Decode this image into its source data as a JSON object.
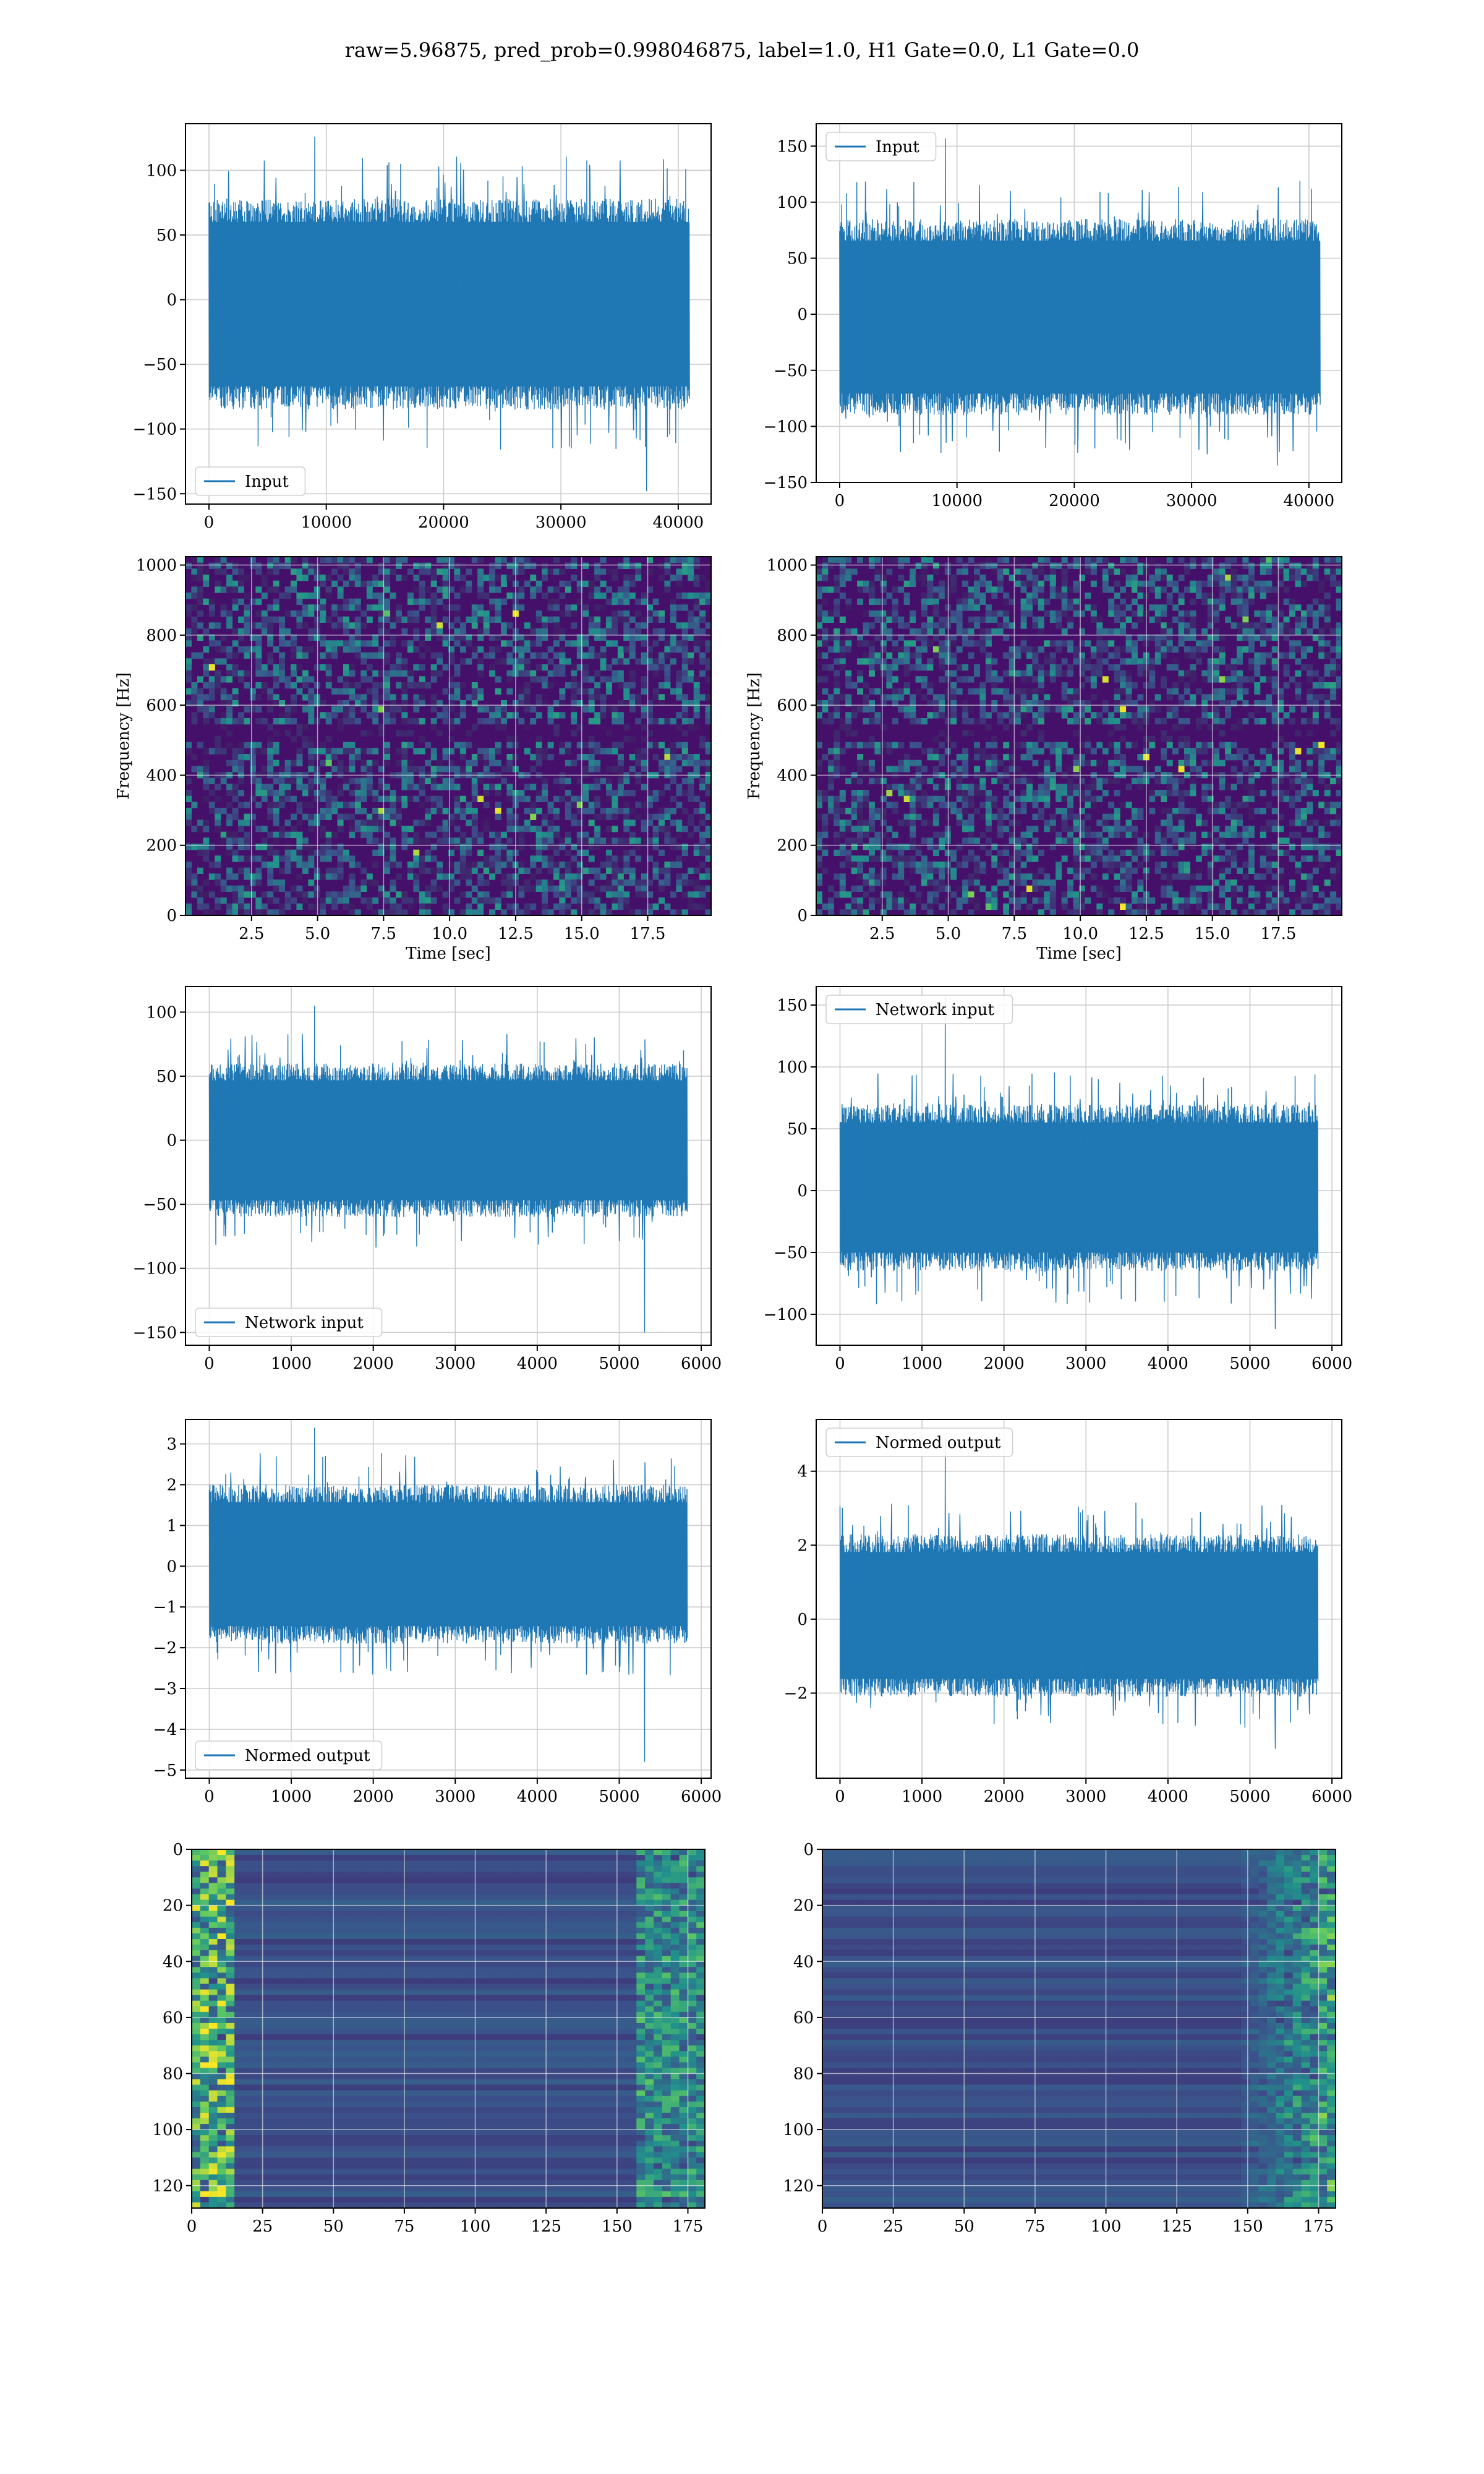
{
  "figure": {
    "title": "raw=5.96875, pred_prob=0.998046875, label=1.0, H1 Gate=0.0, L1 Gate=0.0"
  },
  "colors": {
    "series": "#1f77b4",
    "grid": "#cccccc",
    "viridis_low": "#440154",
    "viridis_mid": "#21918c",
    "viridis_high": "#fde725"
  },
  "chart_data": [
    {
      "id": "r1c1",
      "type": "line",
      "legend": "Input",
      "legend_loc": "lower-left",
      "xlim": [
        -2000,
        42800
      ],
      "ylim": [
        -158,
        136
      ],
      "xticks": [
        0,
        10000,
        20000,
        30000,
        40000
      ],
      "yticks": [
        -150,
        -100,
        -50,
        0,
        50,
        100
      ],
      "x_range": [
        0,
        40960
      ],
      "band": [
        -85,
        78
      ],
      "peak_max": 126,
      "peak_min": -148,
      "grid": true
    },
    {
      "id": "r1c2",
      "type": "line",
      "legend": "Input",
      "legend_loc": "upper-left",
      "xlim": [
        -2000,
        42800
      ],
      "ylim": [
        -150,
        170
      ],
      "xticks": [
        0,
        10000,
        20000,
        30000,
        40000
      ],
      "yticks": [
        -150,
        -100,
        -50,
        0,
        50,
        100,
        150
      ],
      "x_range": [
        0,
        40960
      ],
      "band": [
        -90,
        85
      ],
      "peak_max": 157,
      "peak_min": -135,
      "grid": true
    },
    {
      "id": "r2c1",
      "type": "heatmap",
      "kind": "spectrogram",
      "xlabel": "Time [sec]",
      "ylabel": "Frequency [Hz]",
      "xlim": [
        0,
        19.9
      ],
      "ylim": [
        0,
        1024
      ],
      "xticks": [
        2.5,
        5.0,
        7.5,
        10.0,
        12.5,
        15.0,
        17.5
      ],
      "yticks": [
        0,
        200,
        400,
        600,
        800,
        1000
      ],
      "grid": true
    },
    {
      "id": "r2c2",
      "type": "heatmap",
      "kind": "spectrogram",
      "xlabel": "Time [sec]",
      "ylabel": "Frequency [Hz]",
      "xlim": [
        0,
        19.9
      ],
      "ylim": [
        0,
        1024
      ],
      "xticks": [
        2.5,
        5.0,
        7.5,
        10.0,
        12.5,
        15.0,
        17.5
      ],
      "yticks": [
        0,
        200,
        400,
        600,
        800,
        1000
      ],
      "grid": true
    },
    {
      "id": "r3c1",
      "type": "line",
      "legend": "Network input",
      "legend_loc": "lower-left",
      "xlim": [
        -290,
        6120
      ],
      "ylim": [
        -160,
        120
      ],
      "xticks": [
        0,
        1000,
        2000,
        3000,
        4000,
        5000,
        6000
      ],
      "yticks": [
        -150,
        -100,
        -50,
        0,
        50,
        100
      ],
      "x_range": [
        0,
        5830
      ],
      "band": [
        -60,
        60
      ],
      "peak_max": 105,
      "peak_min": -150,
      "grid": true
    },
    {
      "id": "r3c2",
      "type": "line",
      "legend": "Network input",
      "legend_loc": "upper-left",
      "xlim": [
        -290,
        6120
      ],
      "ylim": [
        -125,
        165
      ],
      "xticks": [
        0,
        1000,
        2000,
        3000,
        4000,
        5000,
        6000
      ],
      "yticks": [
        -100,
        -50,
        0,
        50,
        100,
        150
      ],
      "x_range": [
        0,
        5830
      ],
      "band": [
        -65,
        70
      ],
      "peak_max": 157,
      "peak_min": -112,
      "grid": true
    },
    {
      "id": "r4c1",
      "type": "line",
      "legend": "Normed output",
      "legend_loc": "lower-left",
      "xlim": [
        -290,
        6120
      ],
      "ylim": [
        -5.2,
        3.6
      ],
      "xticks": [
        0,
        1000,
        2000,
        3000,
        4000,
        5000,
        6000
      ],
      "yticks": [
        -5,
        -4,
        -3,
        -2,
        -1,
        0,
        1,
        2,
        3
      ],
      "x_range": [
        0,
        5830
      ],
      "band": [
        -1.9,
        2.0
      ],
      "peak_max": 3.4,
      "peak_min": -4.8,
      "grid": true
    },
    {
      "id": "r4c2",
      "type": "line",
      "legend": "Normed output",
      "legend_loc": "upper-left",
      "xlim": [
        -290,
        6120
      ],
      "ylim": [
        -4.3,
        5.4
      ],
      "xticks": [
        0,
        1000,
        2000,
        3000,
        4000,
        5000,
        6000
      ],
      "yticks": [
        -2,
        0,
        2,
        4
      ],
      "x_range": [
        0,
        5830
      ],
      "band": [
        -2.1,
        2.3
      ],
      "peak_max": 4.9,
      "peak_min": -3.5,
      "grid": true
    },
    {
      "id": "r5c1",
      "type": "heatmap",
      "kind": "activation",
      "xlim": [
        0,
        181
      ],
      "ylim": [
        0,
        128
      ],
      "y_inverted": true,
      "xticks": [
        0,
        25,
        50,
        75,
        100,
        125,
        150,
        175
      ],
      "yticks": [
        0,
        20,
        40,
        60,
        80,
        100,
        120
      ],
      "grid": true
    },
    {
      "id": "r5c2",
      "type": "heatmap",
      "kind": "activation",
      "xlim": [
        0,
        181
      ],
      "ylim": [
        0,
        128
      ],
      "y_inverted": true,
      "xticks": [
        0,
        25,
        50,
        75,
        100,
        125,
        150,
        175
      ],
      "yticks": [
        0,
        20,
        40,
        60,
        80,
        100,
        120
      ],
      "grid": true
    }
  ]
}
